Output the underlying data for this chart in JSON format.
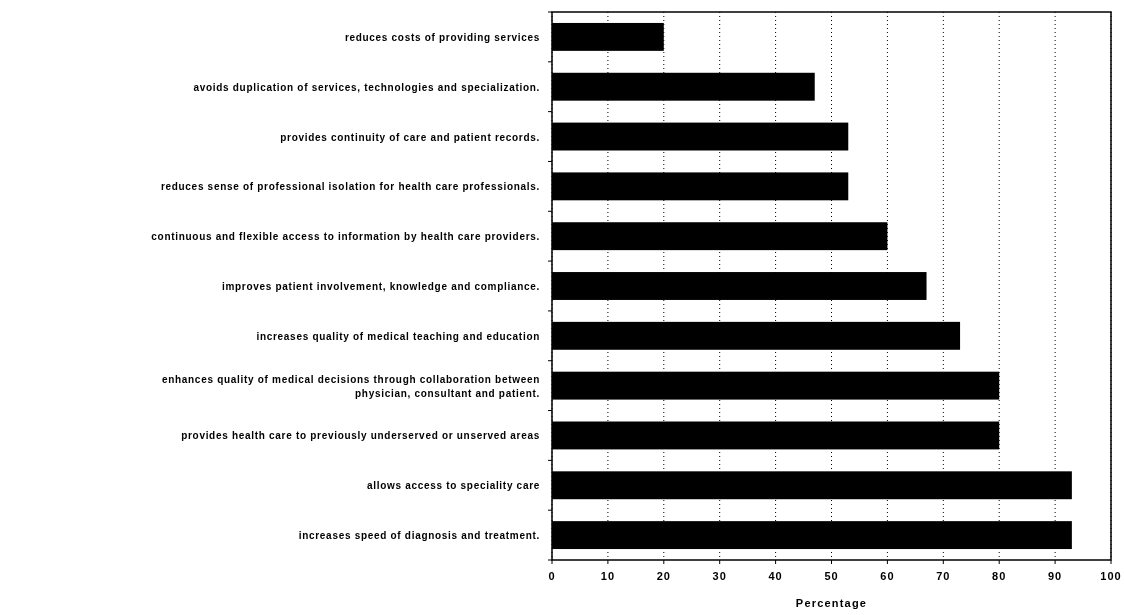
{
  "chart_data": {
    "type": "bar",
    "orientation": "horizontal",
    "xlabel": "Percentage",
    "categories": [
      "reduces costs of providing services",
      "avoids duplication of services, technologies and specialization.",
      "provides continuity of care and patient records.",
      "reduces sense of professional isolation for health care professionals.",
      "continuous and flexible access to information by health care providers.",
      "improves patient involvement, knowledge and compliance.",
      "increases quality of medical teaching and education",
      "enhances quality of medical decisions through collaboration between physician, consultant and patient.",
      "provides health care to previously underserved or unserved areas",
      "allows access to speciality care",
      "increases speed of diagnosis and treatment."
    ],
    "values": [
      20,
      47,
      53,
      53,
      60,
      67,
      73,
      80,
      80,
      93,
      93
    ],
    "color": "#000000",
    "xlim": [
      0,
      100
    ],
    "xticks": [
      0,
      10,
      20,
      30,
      40,
      50,
      60,
      70,
      80,
      90,
      100
    ],
    "grid": "x"
  }
}
